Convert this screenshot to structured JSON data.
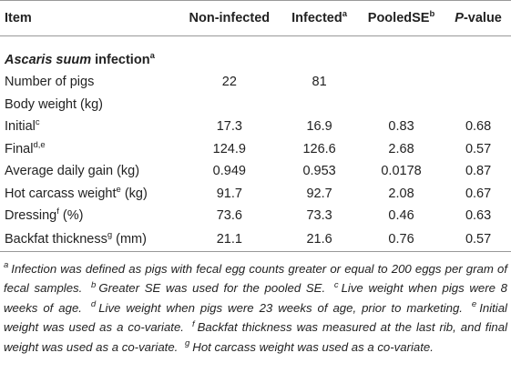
{
  "table": {
    "header": [
      {
        "text": "Item"
      },
      {
        "text": "Non-infected"
      },
      {
        "text": "Infected",
        "sup": "a"
      },
      {
        "text": "PooledSE",
        "sup": "b"
      },
      {
        "italic": "P",
        "text": "-value"
      }
    ],
    "section": {
      "italic": "Ascaris suum",
      "text": " infection",
      "sup": "a"
    },
    "rows": [
      {
        "label": {
          "text": "Number of pigs"
        },
        "values": [
          "22",
          "81"
        ]
      },
      {
        "label": {
          "text": "Body weight (kg)"
        },
        "values": []
      },
      {
        "label": {
          "text": "Initial",
          "sup": "c"
        },
        "values": [
          "17.3",
          "16.9",
          "0.83",
          "0.68"
        ]
      },
      {
        "label": {
          "text": "Final",
          "sup": "d,e"
        },
        "values": [
          "124.9",
          "126.6",
          "2.68",
          "0.57"
        ]
      },
      {
        "label": {
          "text": "Average daily gain (kg)"
        },
        "values": [
          "0.949",
          "0.953",
          "0.0178",
          "0.87"
        ]
      },
      {
        "label": {
          "text": "Hot carcass weight",
          "sup": "e",
          "rest": " (kg)"
        },
        "values": [
          "91.7",
          "92.7",
          "2.08",
          "0.67"
        ]
      },
      {
        "label": {
          "text": "Dressing",
          "sup": "f",
          "rest": " (%)"
        },
        "values": [
          "73.6",
          "73.3",
          "0.46",
          "0.63"
        ]
      },
      {
        "label": {
          "text": "Backfat thickness",
          "sup": "g",
          "rest": " (mm)"
        },
        "values": [
          "21.1",
          "21.6",
          "0.76",
          "0.57"
        ]
      }
    ],
    "footnotes": [
      {
        "sup": "a",
        "text": "Infection was defined as pigs with fecal egg counts greater or equal to 200 eggs per gram of fecal samples."
      },
      {
        "sup": "b",
        "text": "Greater SE was used for the pooled SE."
      },
      {
        "sup": "c",
        "text": "Live weight when pigs were 8 weeks of age."
      },
      {
        "sup": "d",
        "text": "Live weight when pigs were 23 weeks of age, prior to marketing."
      },
      {
        "sup": "e",
        "text": "Initial weight was used as a co-variate."
      },
      {
        "sup": "f",
        "text": "Backfat thickness was measured at the last rib, and final weight was used as a co-variate."
      },
      {
        "sup": "g",
        "text": "Hot carcass weight was used as a co-variate."
      }
    ]
  }
}
